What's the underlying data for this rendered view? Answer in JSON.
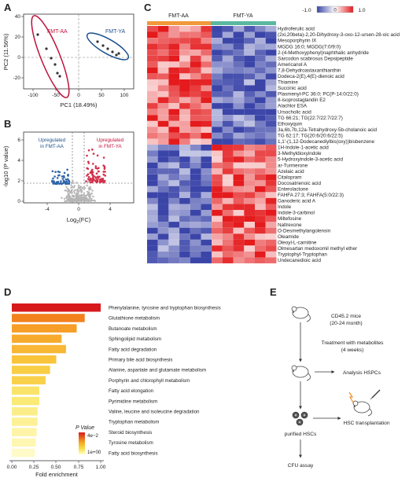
{
  "panels": {
    "A": "A",
    "B": "B",
    "C": "C",
    "D": "D",
    "E": "E"
  },
  "panelA": {
    "xlabel": "PC1 (18.49%)",
    "ylabel": "PC2 (11.56%)",
    "group1": "FMT-AA",
    "group2": "FMT-YA",
    "xticks": [
      "-100",
      "-50",
      "0",
      "50",
      "100"
    ],
    "yticks": [
      "-20",
      "0",
      "20",
      "40"
    ]
  },
  "panelB": {
    "xlabel_main": "Log",
    "xlabel_sub": "2",
    "xlabel_tail": "(FC)",
    "ylabel": "-log10 (P value)",
    "left_line1": "Upregulated",
    "left_line2": "in FMT-AA",
    "right_line1": "Upregulated",
    "right_line2": "in FMT-YA",
    "xticks": [
      "-4",
      "0",
      "4"
    ],
    "yticks": [
      "0",
      "2",
      "4",
      "6"
    ]
  },
  "panelC": {
    "group1": "FMT-AA",
    "group2": "FMT-YA",
    "scale": [
      "-1.0",
      "0",
      "1.0"
    ],
    "metabolites": [
      "Hydroferulic acid",
      "(2xi,20beta)-2,20-Dihydroxy-3-oxo-12-ursen-28-oic acid",
      "Mesoporphyrin IX",
      "MGDG 16:0; MGDG(7:0/9:0)",
      "2-(4-Methoxyphenyl)naphthalic anhydride",
      "Sarcodon scabrosus Depsipeptide",
      "Americanol A",
      "7,8-Dehydroastaxanthianthin",
      "Dodeca-2(E),4(E)-dienoic acid",
      "Thiamine",
      "Succinic acid",
      "Plasmenyl-PC 36:0; PC(P-14:0/22:0)",
      "8-isoprostaglandin E2",
      "Alachlor ESA",
      "Ursocholic acid",
      "TG 66:21; TG(22:7/22:7/22:7)",
      "Ethoxyquin",
      "3a,6b,7b,12a-Tetrahydroxy-5b-cholanoic acid",
      "TG 62:17; TG(20:6/20:6/22:5)",
      "1,1'-(1,12-Dodecanediylbis(oxy))bisbenzene",
      "1H-Indole-1-acetic acid",
      "3-Methyldioxyindole",
      "5-Hydroxyindole-3-acetic acid",
      "ar-Turmerone",
      "Azelaic acid",
      "Citalopram",
      "Docosatrienoic acid",
      "Enterolactone",
      "FAHFA 27:3; FAHFA(5:0/22:3)",
      "Ganoderic acid A",
      "Indole",
      "Indole-3-carbinol",
      "Miltefosine",
      "Naltrexone",
      "O-Desmethylangolensin",
      "Oleamide",
      "Oleoyl-L-carnitine",
      "Olmesartan medoxomil methyl ether",
      "Tryptophyl-Tryptophan",
      "Undecanedioic acid"
    ],
    "colors": {
      "low": "#3b45a8",
      "mid": "#ffffff",
      "high": "#e41a1c",
      "aa": "#f0993a",
      "ya": "#5bb8a0"
    }
  },
  "panelD": {
    "xlabel": "Fold enrichment",
    "xticks": [
      "0.00",
      "0.25",
      "0.50",
      "0.75",
      "1.00"
    ],
    "legend_title": "P Value",
    "legend_max": "4e−2",
    "legend_min": "1e+00",
    "pathways": [
      {
        "name": "Phenylalanine, tyrosine and tryptophan biosynthesis",
        "fold": 1.0,
        "p": 0.04
      },
      {
        "name": "Glutathione metabolism",
        "fold": 0.82,
        "p": 0.3
      },
      {
        "name": "Butanoate metabolism",
        "fold": 0.73,
        "p": 0.4
      },
      {
        "name": "Sphingolipid metabolism",
        "fold": 0.56,
        "p": 0.45
      },
      {
        "name": "Fatty acid degradation",
        "fold": 0.61,
        "p": 0.5
      },
      {
        "name": "Primary bile acid biosynthesis",
        "fold": 0.5,
        "p": 0.55
      },
      {
        "name": "Alanine, aspartate and glutamate metabolism",
        "fold": 0.43,
        "p": 0.6
      },
      {
        "name": "Porphyrin and chlorophyll metabolism",
        "fold": 0.38,
        "p": 0.62
      },
      {
        "name": "Fatty acid elongation",
        "fold": 0.31,
        "p": 0.75
      },
      {
        "name": "Pyrimidine metabolism",
        "fold": 0.31,
        "p": 0.8
      },
      {
        "name": "Valine, leucine and isoleucine degradation",
        "fold": 0.29,
        "p": 0.85
      },
      {
        "name": "Tryptophan metabolism",
        "fold": 0.29,
        "p": 0.88
      },
      {
        "name": "Steroid biosynthesis",
        "fold": 0.28,
        "p": 0.92
      },
      {
        "name": "Tyrosine metabolism",
        "fold": 0.27,
        "p": 0.95
      },
      {
        "name": "Fatty acid biosynthesis",
        "fold": 0.26,
        "p": 1.0
      }
    ]
  },
  "panelE": {
    "mice_line1": "CD45.2 mice",
    "mice_line2": "(20-24 month)",
    "treat_line1": "Treatment with metabolites",
    "treat_line2": "(4 weeks)",
    "analysis": "Analysis HSPCs",
    "purified": "purified HSCs",
    "transplant": "HSC transplantation",
    "cfu": "CFU assay"
  }
}
